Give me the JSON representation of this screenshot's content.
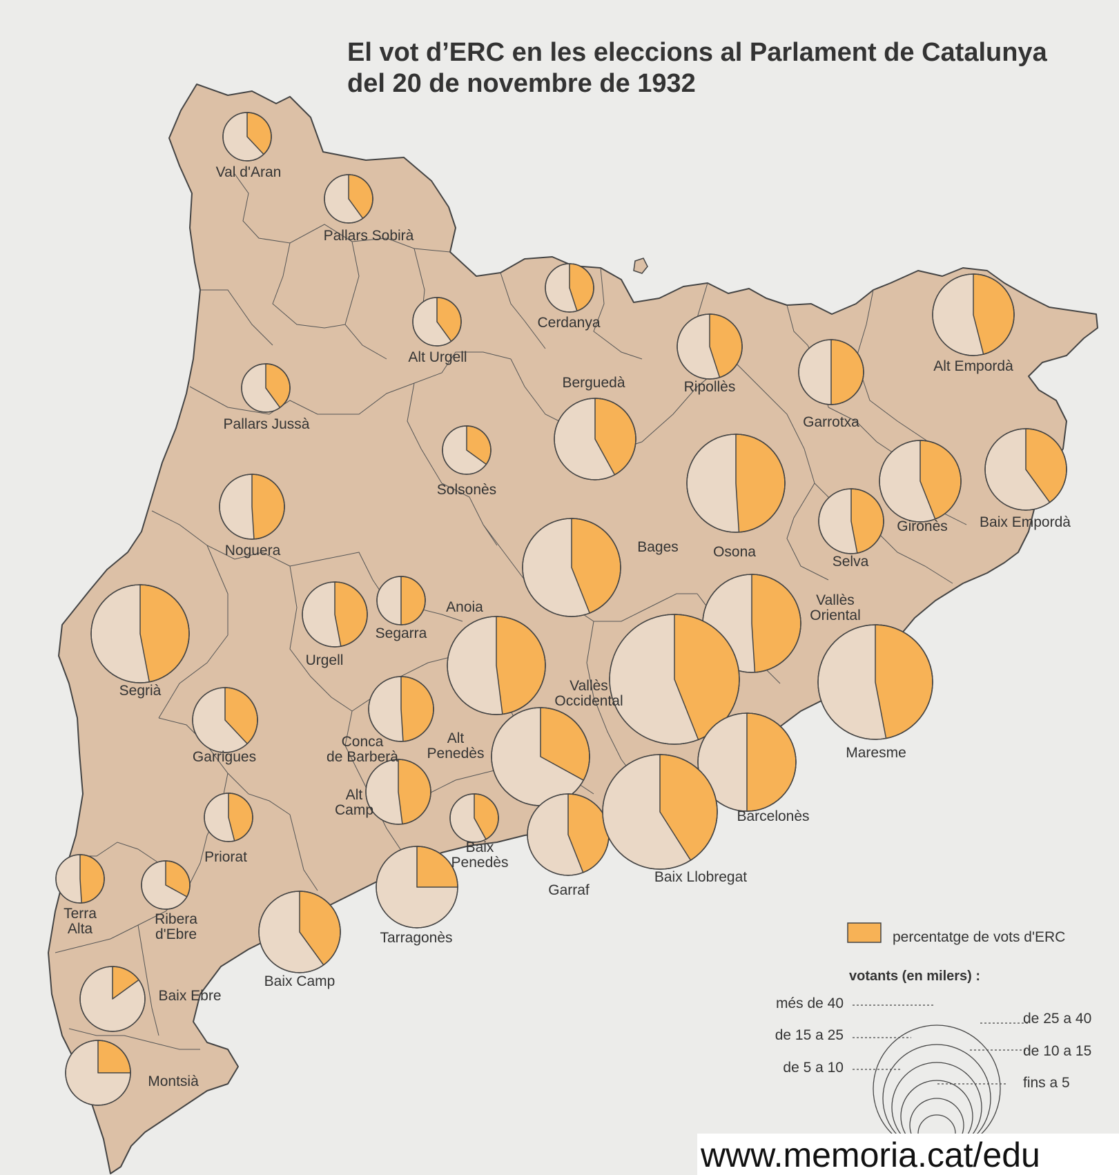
{
  "title": {
    "line1": "El vot d’ERC en les eleccions al Parlament de Catalunya",
    "line2": "del 20 de novembre de 1932"
  },
  "colors": {
    "erc": "#f7b256",
    "other": "#ead8c6",
    "land": "#dcc0a6",
    "sea": "#ececea",
    "line": "#444444"
  },
  "regions": [
    {
      "name": "Val d'Aran",
      "pct": 0.38,
      "size": "fins a 5"
    },
    {
      "name": "Pallars Sobirà",
      "pct": 0.4,
      "size": "fins a 5"
    },
    {
      "name": "Alt Urgell",
      "pct": 0.4,
      "size": "fins a 5"
    },
    {
      "name": "Cerdanya",
      "pct": 0.45,
      "size": "fins a 5"
    },
    {
      "name": "Pallars Jussà",
      "pct": 0.4,
      "size": "fins a 5"
    },
    {
      "name": "Berguedà",
      "pct": 0.42,
      "size": "de 10 a 15"
    },
    {
      "name": "Ripollès",
      "pct": 0.45,
      "size": "de 5 a 10"
    },
    {
      "name": "Garrotxa",
      "pct": 0.5,
      "size": "de 5 a 10"
    },
    {
      "name": "Alt Empordà",
      "pct": 0.46,
      "size": "de 10 a 15"
    },
    {
      "name": "Solsonès",
      "pct": 0.35,
      "size": "fins a 5"
    },
    {
      "name": "Noguera",
      "pct": 0.49,
      "size": "de 5 a 10"
    },
    {
      "name": "Osona",
      "pct": 0.49,
      "size": "de 15 a 25"
    },
    {
      "name": "Selva",
      "pct": 0.47,
      "size": "de 5 a 10"
    },
    {
      "name": "Gironès",
      "pct": 0.44,
      "size": "de 10 a 15"
    },
    {
      "name": "Baix Empordà",
      "pct": 0.4,
      "size": "de 10 a 15"
    },
    {
      "name": "Bages",
      "pct": 0.44,
      "size": "de 15 a 25"
    },
    {
      "name": "Segrià",
      "pct": 0.47,
      "size": "de 15 a 25"
    },
    {
      "name": "Urgell",
      "pct": 0.47,
      "size": "de 5 a 10"
    },
    {
      "name": "Segarra",
      "pct": 0.5,
      "size": "fins a 5"
    },
    {
      "name": "Anoia",
      "pct": 0.48,
      "size": "de 15 a 25"
    },
    {
      "name": "Vallès Oriental",
      "pct": 0.49,
      "size": "de 15 a 25"
    },
    {
      "name": "Vallès Occidental",
      "pct": 0.44,
      "size": "més de 40"
    },
    {
      "name": "Maresme",
      "pct": 0.47,
      "size": "de 25 a 40"
    },
    {
      "name": "Garrigues",
      "pct": 0.38,
      "size": "de 5 a 10"
    },
    {
      "name": "Conca de Barberà",
      "pct": 0.49,
      "size": "de 5 a 10"
    },
    {
      "name": "Alt Penedès",
      "pct": 0.33,
      "size": "de 15 a 25"
    },
    {
      "name": "Barcelonès",
      "pct": 0.5,
      "size": "de 15 a 25"
    },
    {
      "name": "Alt Camp",
      "pct": 0.48,
      "size": "de 5 a 10"
    },
    {
      "name": "Priorat",
      "pct": 0.46,
      "size": "fins a 5"
    },
    {
      "name": "Baix Penedès",
      "pct": 0.42,
      "size": "fins a 5"
    },
    {
      "name": "Garraf",
      "pct": 0.44,
      "size": "de 10 a 15"
    },
    {
      "name": "Baix Llobregat",
      "pct": 0.41,
      "size": "de 25 a 40"
    },
    {
      "name": "Tarragonès",
      "pct": 0.25,
      "size": "de 10 a 15"
    },
    {
      "name": "Terra Alta",
      "pct": 0.49,
      "size": "fins a 5"
    },
    {
      "name": "Ribera d'Ebre",
      "pct": 0.33,
      "size": "fins a 5"
    },
    {
      "name": "Baix Camp",
      "pct": 0.4,
      "size": "de 10 a 15"
    },
    {
      "name": "Baix Ebre",
      "pct": 0.15,
      "size": "de 5 a 10"
    },
    {
      "name": "Montsià",
      "pct": 0.25,
      "size": "de 5 a 10"
    }
  ],
  "labels": [
    {
      "lines": [
        "Val d'Aran"
      ]
    },
    {
      "lines": [
        "Pallars Sobirà"
      ]
    },
    {
      "lines": [
        "Alt Urgell"
      ]
    },
    {
      "lines": [
        "Cerdanya"
      ]
    },
    {
      "lines": [
        "Pallars Jussà"
      ]
    },
    {
      "lines": [
        "Berguedà"
      ]
    },
    {
      "lines": [
        "Ripollès"
      ]
    },
    {
      "lines": [
        "Garrotxa"
      ]
    },
    {
      "lines": [
        "Alt Empordà"
      ]
    },
    {
      "lines": [
        "Solsonès"
      ]
    },
    {
      "lines": [
        "Noguera"
      ]
    },
    {
      "lines": [
        "Osona"
      ]
    },
    {
      "lines": [
        "Selva"
      ]
    },
    {
      "lines": [
        "Gironès"
      ]
    },
    {
      "lines": [
        "Baix Empordà"
      ]
    },
    {
      "lines": [
        "Bages"
      ]
    },
    {
      "lines": [
        "Segrià"
      ]
    },
    {
      "lines": [
        "Urgell"
      ]
    },
    {
      "lines": [
        "Segarra"
      ]
    },
    {
      "lines": [
        "Anoia"
      ]
    },
    {
      "lines": [
        "Vallès",
        "Oriental"
      ]
    },
    {
      "lines": [
        "Vallès",
        "Occidental"
      ]
    },
    {
      "lines": [
        "Maresme"
      ]
    },
    {
      "lines": [
        "Garrigues"
      ]
    },
    {
      "lines": [
        "Conca",
        "de Barberà"
      ]
    },
    {
      "lines": [
        "Alt",
        "Penedès"
      ]
    },
    {
      "lines": [
        "Barcelonès"
      ]
    },
    {
      "lines": [
        "Alt",
        "Camp"
      ]
    },
    {
      "lines": [
        "Priorat"
      ]
    },
    {
      "lines": [
        "Baix",
        "Penedès"
      ]
    },
    {
      "lines": [
        "Garraf"
      ]
    },
    {
      "lines": [
        "Baix Llobregat"
      ]
    },
    {
      "lines": [
        "Tarragonès"
      ]
    },
    {
      "lines": [
        "Terra",
        "Alta"
      ]
    },
    {
      "lines": [
        "Ribera",
        "d'Ebre"
      ]
    },
    {
      "lines": [
        "Baix Camp"
      ]
    },
    {
      "lines": [
        "Baix Ebre"
      ]
    },
    {
      "lines": [
        "Montsià"
      ]
    }
  ],
  "legend": {
    "swatch_label": "percentatge de vots d'ERC",
    "voters_title": "votants (en milers) :",
    "classes": [
      "més de 40",
      "de 25 a 40",
      "de 15 a 25",
      "de 10 a 15",
      "de 5 a 10",
      "fins a 5"
    ]
  },
  "footer": {
    "url": "www.memoria.cat/edu"
  }
}
